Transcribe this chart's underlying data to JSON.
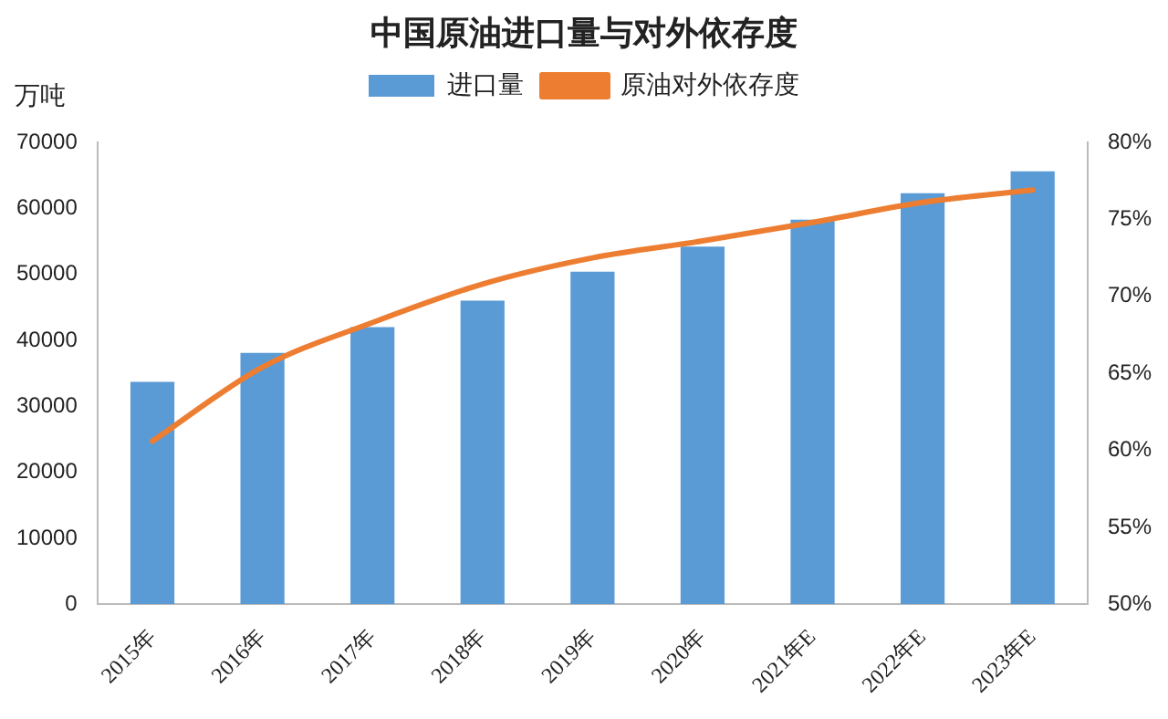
{
  "chart_data": {
    "type": "bar",
    "title": "中国原油进口量与对外依存度",
    "ylabel": "万吨",
    "categories": [
      "2015年",
      "2016年",
      "2017年",
      "2018年",
      "2019年",
      "2020年",
      "2021年E",
      "2022年E",
      "2023年E"
    ],
    "series": [
      {
        "name": "进口量",
        "color": "#5b9bd5",
        "values": [
          33700,
          38100,
          42000,
          46000,
          50400,
          54200,
          58300,
          62300,
          65600
        ]
      },
      {
        "name": "原油对外依存度",
        "type": "line",
        "axis": "y2",
        "color": "#ed7d31",
        "values": [
          60.6,
          65.4,
          68.3,
          70.8,
          72.5,
          73.6,
          74.8,
          76.1,
          76.9
        ]
      }
    ],
    "ylim": [
      0,
      70000
    ],
    "yticks": [
      0,
      10000,
      20000,
      30000,
      40000,
      50000,
      60000,
      70000
    ],
    "y2lim": [
      50,
      80
    ],
    "y2ticks": [
      {
        "value": 50,
        "label": "50%"
      },
      {
        "value": 55,
        "label": "55%"
      },
      {
        "value": 60,
        "label": "60%"
      },
      {
        "value": 65,
        "label": "65%"
      },
      {
        "value": 70,
        "label": "70%"
      },
      {
        "value": 75,
        "label": "75%"
      },
      {
        "value": 80,
        "label": "80%"
      }
    ],
    "legend": "top",
    "grid": false,
    "marker": "none"
  }
}
